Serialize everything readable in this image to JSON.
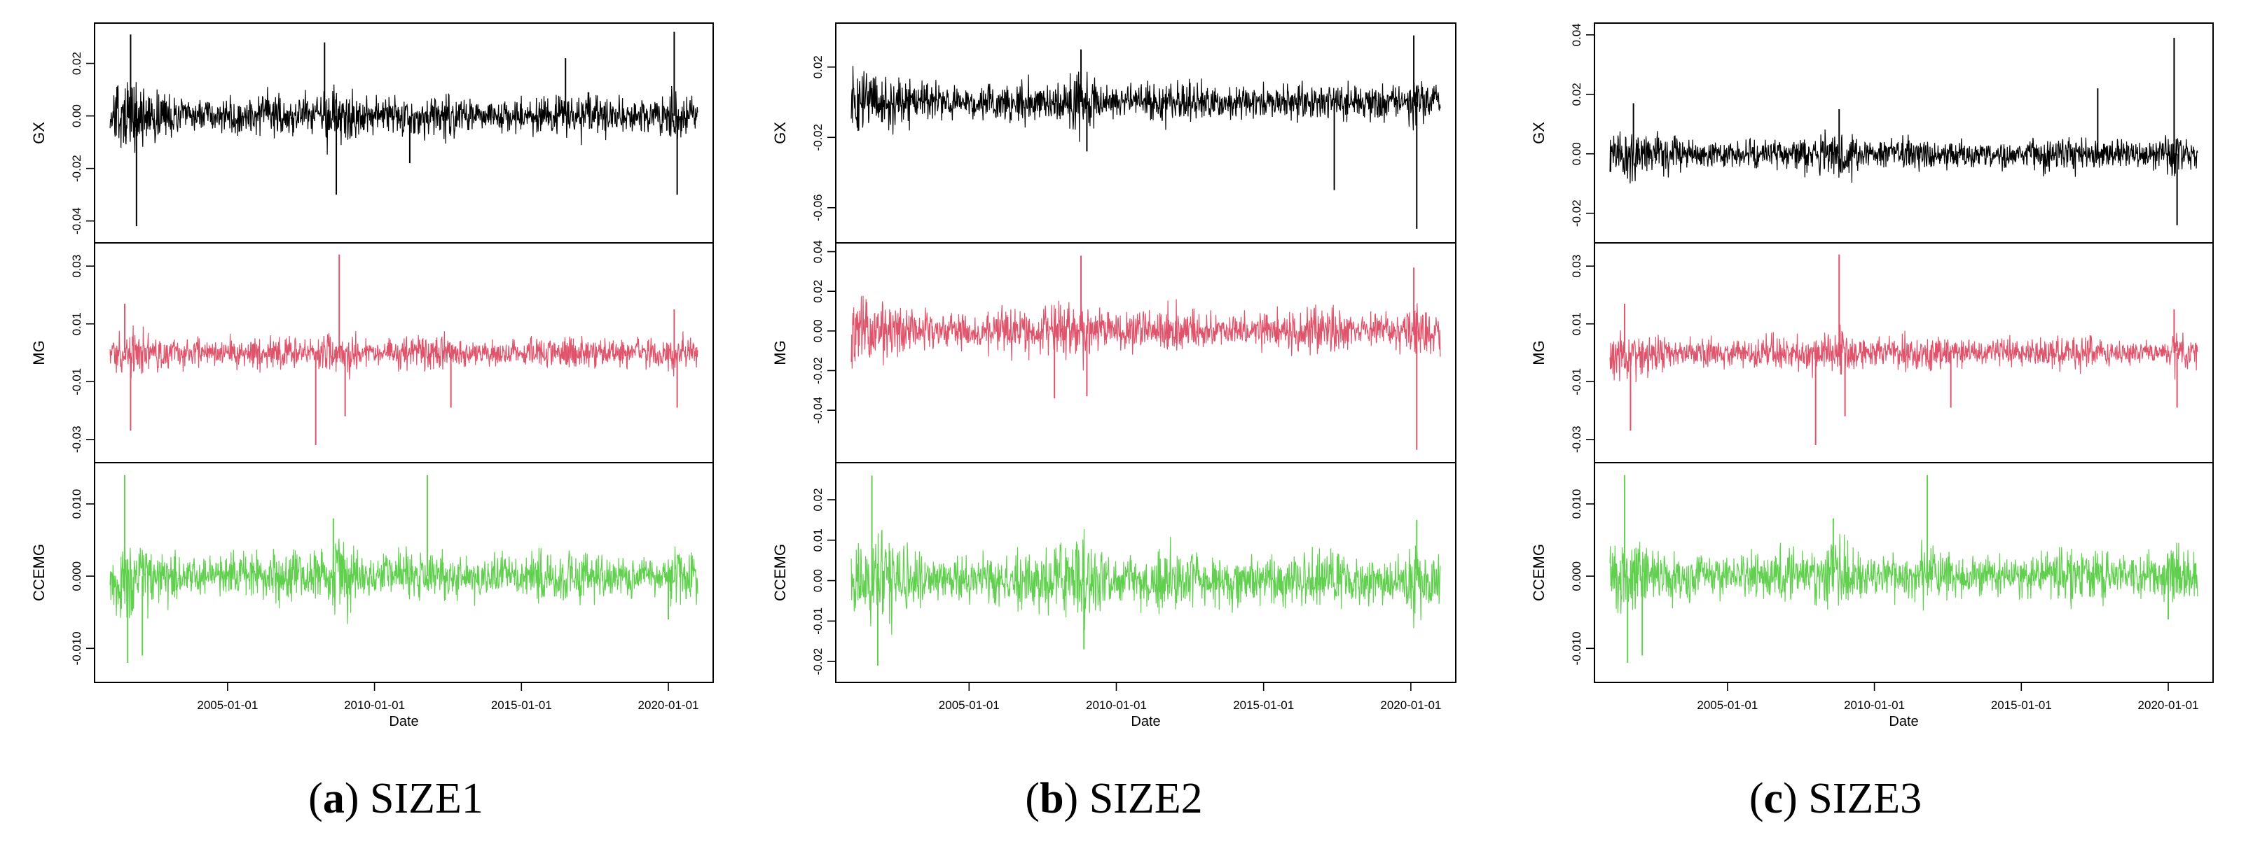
{
  "chart_data": [
    {
      "type": "line",
      "caption_letter": "a",
      "caption_text": "SIZE1",
      "x_ticks": [
        "2005-01-01",
        "2010-01-01",
        "2015-01-01",
        "2020-01-01"
      ],
      "x_range": [
        "2001-01-01",
        "2020-12-31"
      ],
      "xlabel": "Date",
      "panels": [
        {
          "name": "GX",
          "color": "#000000",
          "ylim": [
            -0.045,
            0.032
          ],
          "ticks": [
            0.02,
            0.0,
            -0.02,
            -0.04
          ],
          "tick_labels": [
            "0.02",
            "0.00",
            "-0.02",
            "-0.04"
          ],
          "scale": 0.005,
          "spikes": [
            [
              2001.7,
              0.031
            ],
            [
              2001.9,
              -0.042
            ],
            [
              2008.3,
              0.028
            ],
            [
              2008.7,
              -0.03
            ],
            [
              2011.2,
              -0.018
            ],
            [
              2016.5,
              0.022
            ],
            [
              2020.2,
              0.032
            ],
            [
              2020.3,
              -0.03
            ]
          ]
        },
        {
          "name": "MG",
          "color": "#DF536B",
          "ylim": [
            -0.035,
            0.035
          ],
          "ticks": [
            0.03,
            0.01,
            -0.01,
            -0.03
          ],
          "tick_labels": [
            "0.03",
            "0.01",
            "-0.01",
            "-0.03"
          ],
          "scale": 0.0035,
          "spikes": [
            [
              2001.5,
              0.017
            ],
            [
              2001.7,
              -0.027
            ],
            [
              2008.0,
              -0.032
            ],
            [
              2008.8,
              0.034
            ],
            [
              2009.0,
              -0.022
            ],
            [
              2012.6,
              -0.019
            ],
            [
              2020.2,
              0.015
            ],
            [
              2020.3,
              -0.019
            ]
          ]
        },
        {
          "name": "CCEMG",
          "color": "#61D04F",
          "ylim": [
            -0.0135,
            0.0145
          ],
          "ticks": [
            0.01,
            0.0,
            -0.01
          ],
          "tick_labels": [
            "0.010",
            "0.000",
            "-0.010"
          ],
          "scale": 0.0022,
          "spikes": [
            [
              2001.5,
              0.014
            ],
            [
              2001.6,
              -0.012
            ],
            [
              2002.1,
              -0.011
            ],
            [
              2008.6,
              0.008
            ],
            [
              2011.8,
              0.014
            ],
            [
              2020.0,
              -0.006
            ]
          ]
        }
      ]
    },
    {
      "type": "line",
      "caption_letter": "b",
      "caption_text": "SIZE2",
      "x_ticks": [
        "2005-01-01",
        "2010-01-01",
        "2015-01-01",
        "2020-01-01"
      ],
      "x_range": [
        "2001-01-01",
        "2020-12-31"
      ],
      "xlabel": "Date",
      "panels": [
        {
          "name": "GX",
          "color": "#000000",
          "ylim": [
            -0.075,
            0.04
          ],
          "ticks": [
            0.02,
            -0.02,
            -0.06
          ],
          "tick_labels": [
            "0.02",
            "-0.02",
            "-0.06"
          ],
          "scale": 0.007,
          "spikes": [
            [
              2008.8,
              0.03
            ],
            [
              2009.0,
              -0.028
            ],
            [
              2017.4,
              -0.05
            ],
            [
              2020.1,
              0.038
            ],
            [
              2020.2,
              -0.072
            ]
          ]
        },
        {
          "name": "MG",
          "color": "#DF536B",
          "ylim": [
            -0.062,
            0.04
          ],
          "ticks": [
            0.04,
            0.02,
            0.0,
            -0.02,
            -0.04
          ],
          "tick_labels": [
            "0.04",
            "0.02",
            "0.00",
            "-0.02",
            "-0.04"
          ],
          "scale": 0.007,
          "spikes": [
            [
              2007.9,
              -0.034
            ],
            [
              2008.8,
              0.038
            ],
            [
              2009.0,
              -0.033
            ],
            [
              2020.1,
              0.032
            ],
            [
              2020.2,
              -0.06
            ]
          ]
        },
        {
          "name": "CCEMG",
          "color": "#61D04F",
          "ylim": [
            -0.023,
            0.027
          ],
          "ticks": [
            0.02,
            0.01,
            0.0,
            -0.01,
            -0.02
          ],
          "tick_labels": [
            "0.02",
            "0.01",
            "0.00",
            "-0.01",
            "-0.02"
          ],
          "scale": 0.0045,
          "spikes": [
            [
              2001.7,
              0.026
            ],
            [
              2001.9,
              -0.021
            ],
            [
              2008.9,
              -0.017
            ],
            [
              2020.2,
              0.015
            ]
          ]
        }
      ]
    },
    {
      "type": "line",
      "caption_letter": "c",
      "caption_text": "SIZE3",
      "x_ticks": [
        "2005-01-01",
        "2010-01-01",
        "2015-01-01",
        "2020-01-01"
      ],
      "x_range": [
        "2001-01-01",
        "2020-12-31"
      ],
      "xlabel": "Date",
      "panels": [
        {
          "name": "GX",
          "color": "#000000",
          "ylim": [
            -0.027,
            0.041
          ],
          "ticks": [
            0.04,
            0.02,
            0.0,
            -0.02
          ],
          "tick_labels": [
            "0.04",
            "0.02",
            "0.00",
            "-0.02"
          ],
          "scale": 0.0035,
          "spikes": [
            [
              2001.8,
              0.017
            ],
            [
              2008.8,
              0.015
            ],
            [
              2017.6,
              0.022
            ],
            [
              2020.2,
              0.039
            ],
            [
              2020.3,
              -0.024
            ]
          ]
        },
        {
          "name": "MG",
          "color": "#DF536B",
          "ylim": [
            -0.035,
            0.035
          ],
          "ticks": [
            0.03,
            0.01,
            -0.01,
            -0.03
          ],
          "tick_labels": [
            "0.03",
            "0.01",
            "-0.01",
            "-0.03"
          ],
          "scale": 0.0035,
          "spikes": [
            [
              2001.5,
              0.017
            ],
            [
              2001.7,
              -0.027
            ],
            [
              2008.0,
              -0.032
            ],
            [
              2008.8,
              0.034
            ],
            [
              2009.0,
              -0.022
            ],
            [
              2012.6,
              -0.019
            ],
            [
              2020.2,
              0.015
            ],
            [
              2020.3,
              -0.019
            ]
          ]
        },
        {
          "name": "CCEMG",
          "color": "#61D04F",
          "ylim": [
            -0.0135,
            0.0145
          ],
          "ticks": [
            0.01,
            0.0,
            -0.01
          ],
          "tick_labels": [
            "0.010",
            "0.000",
            "-0.010"
          ],
          "scale": 0.0022,
          "spikes": [
            [
              2001.5,
              0.014
            ],
            [
              2001.6,
              -0.012
            ],
            [
              2002.1,
              -0.011
            ],
            [
              2008.6,
              0.008
            ],
            [
              2011.8,
              0.014
            ],
            [
              2020.0,
              -0.006
            ]
          ]
        }
      ]
    }
  ]
}
